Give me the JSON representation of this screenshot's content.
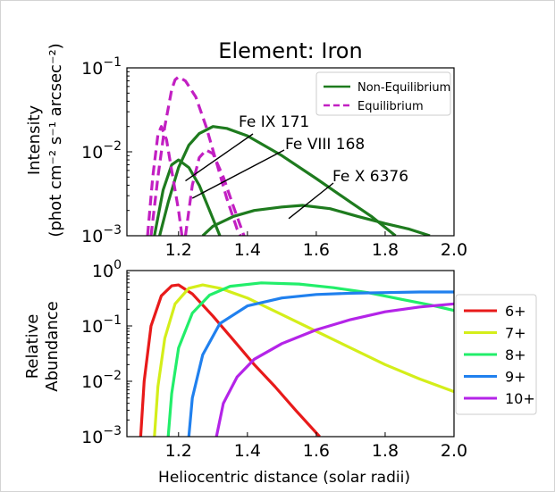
{
  "chart_data": [
    {
      "type": "line",
      "title": "Element: Iron",
      "ylabel_line1": "Intensity",
      "ylabel_line2": "(phot cm⁻² s⁻¹ arcsec⁻²)",
      "xlabel": "",
      "xlim": [
        1.05,
        2.0
      ],
      "ylim": [
        0.001,
        0.1
      ],
      "yscale": "log",
      "xticks": [
        1.2,
        1.4,
        1.6,
        1.8,
        2.0
      ],
      "xtick_labels": [
        "1.2",
        "1.4",
        "1.6",
        "1.8",
        "2.0"
      ],
      "yticks": [
        {
          "base": "10",
          "exp": "−1",
          "value": 0.1
        },
        {
          "base": "10",
          "exp": "−2",
          "value": 0.01
        },
        {
          "base": "10",
          "exp": "−3",
          "value": 0.001
        }
      ],
      "legend": {
        "position": "top-right",
        "entries": [
          {
            "label": "Non-Equilibrium",
            "color": "#1e7b1e",
            "style": "solid"
          },
          {
            "label": "Equilibrium",
            "color": "#c21fc2",
            "style": "dashed"
          }
        ]
      },
      "annotations": [
        {
          "text": "Fe IX 171",
          "target": {
            "x": 1.22,
            "y": 0.0045
          }
        },
        {
          "text": "Fe VIII 168",
          "target": {
            "x": 1.24,
            "y": 0.0028
          }
        },
        {
          "text": "Fe X 6376",
          "target": {
            "x": 1.52,
            "y": 0.0016
          }
        }
      ],
      "series": [
        {
          "line": "Fe IX 171",
          "kind": "Non-Equilibrium",
          "color": "#1e7b1e",
          "dash": false,
          "points": [
            [
              1.145,
              0.001
            ],
            [
              1.17,
              0.0025
            ],
            [
              1.2,
              0.0065
            ],
            [
              1.23,
              0.012
            ],
            [
              1.26,
              0.0165
            ],
            [
              1.3,
              0.02
            ],
            [
              1.34,
              0.019
            ],
            [
              1.4,
              0.0155
            ],
            [
              1.5,
              0.009
            ],
            [
              1.6,
              0.0048
            ],
            [
              1.7,
              0.0025
            ],
            [
              1.76,
              0.0017
            ],
            [
              1.83,
              0.001
            ]
          ]
        },
        {
          "line": "Fe VIII 168",
          "kind": "Non-Equilibrium",
          "color": "#1e7b1e",
          "dash": false,
          "points": [
            [
              1.13,
              0.001
            ],
            [
              1.155,
              0.0035
            ],
            [
              1.18,
              0.007
            ],
            [
              1.2,
              0.008
            ],
            [
              1.23,
              0.0065
            ],
            [
              1.26,
              0.004
            ],
            [
              1.29,
              0.002
            ],
            [
              1.32,
              0.001
            ]
          ]
        },
        {
          "line": "Fe X 6376",
          "kind": "Non-Equilibrium",
          "color": "#1e7b1e",
          "dash": false,
          "points": [
            [
              1.27,
              0.001
            ],
            [
              1.3,
              0.0013
            ],
            [
              1.36,
              0.0017
            ],
            [
              1.42,
              0.002
            ],
            [
              1.5,
              0.0022
            ],
            [
              1.56,
              0.0023
            ],
            [
              1.64,
              0.0021
            ],
            [
              1.72,
              0.0017
            ],
            [
              1.8,
              0.0014
            ],
            [
              1.87,
              0.0012
            ],
            [
              1.93,
              0.001
            ]
          ]
        },
        {
          "line": "Fe IX 171",
          "kind": "Equilibrium",
          "color": "#c21fc2",
          "dash": true,
          "points": [
            [
              1.12,
              0.001
            ],
            [
              1.14,
              0.005
            ],
            [
              1.16,
              0.02
            ],
            [
              1.18,
              0.055
            ],
            [
              1.19,
              0.072
            ],
            [
              1.2,
              0.078
            ],
            [
              1.22,
              0.07
            ],
            [
              1.25,
              0.045
            ],
            [
              1.28,
              0.02
            ],
            [
              1.31,
              0.0075
            ],
            [
              1.34,
              0.0028
            ],
            [
              1.37,
              0.0012
            ],
            [
              1.38,
              0.001
            ]
          ]
        },
        {
          "line": "Fe VIII 168",
          "kind": "Equilibrium",
          "color": "#c21fc2",
          "dash": true,
          "points": [
            [
              1.11,
              0.001
            ],
            [
              1.125,
              0.005
            ],
            [
              1.14,
              0.016
            ],
            [
              1.15,
              0.02
            ],
            [
              1.165,
              0.014
            ],
            [
              1.18,
              0.006
            ],
            [
              1.2,
              0.002
            ],
            [
              1.21,
              0.001
            ]
          ]
        },
        {
          "line": "Fe X 6376",
          "kind": "Equilibrium",
          "color": "#c21fc2",
          "dash": true,
          "points": [
            [
              1.22,
              0.001
            ],
            [
              1.24,
              0.004
            ],
            [
              1.26,
              0.0085
            ],
            [
              1.28,
              0.0105
            ],
            [
              1.3,
              0.0095
            ],
            [
              1.33,
              0.005
            ],
            [
              1.36,
              0.0022
            ],
            [
              1.39,
              0.001
            ]
          ]
        }
      ]
    },
    {
      "type": "line",
      "title": "",
      "ylabel_line1": "Relative",
      "ylabel_line2": "Abundance",
      "xlabel": "Heliocentric distance (solar radii)",
      "xlim": [
        1.05,
        2.0
      ],
      "ylim": [
        0.001,
        1.0
      ],
      "yscale": "log",
      "xticks": [
        1.2,
        1.4,
        1.6,
        1.8,
        2.0
      ],
      "xtick_labels": [
        "1.2",
        "1.4",
        "1.6",
        "1.8",
        "2.0"
      ],
      "yticks": [
        {
          "base": "10",
          "exp": "0",
          "value": 1.0
        },
        {
          "base": "10",
          "exp": "−1",
          "value": 0.1
        },
        {
          "base": "10",
          "exp": "−2",
          "value": 0.01
        },
        {
          "base": "10",
          "exp": "−3",
          "value": 0.001
        }
      ],
      "legend": {
        "position": "right, outside",
        "entries": [
          {
            "label": "6+",
            "color": "#e81a1a"
          },
          {
            "label": "7+",
            "color": "#d4ee1a"
          },
          {
            "label": "8+",
            "color": "#22ee6a"
          },
          {
            "label": "9+",
            "color": "#2080ee"
          },
          {
            "label": "10+",
            "color": "#b424e8"
          }
        ]
      },
      "series": [
        {
          "name": "6+",
          "color": "#e81a1a",
          "points": [
            [
              1.09,
              0.001
            ],
            [
              1.1,
              0.01
            ],
            [
              1.12,
              0.1
            ],
            [
              1.15,
              0.35
            ],
            [
              1.18,
              0.53
            ],
            [
              1.2,
              0.55
            ],
            [
              1.24,
              0.38
            ],
            [
              1.3,
              0.15
            ],
            [
              1.36,
              0.055
            ],
            [
              1.42,
              0.02
            ],
            [
              1.48,
              0.008
            ],
            [
              1.54,
              0.003
            ],
            [
              1.61,
              0.001
            ]
          ]
        },
        {
          "name": "7+",
          "color": "#d4ee1a",
          "points": [
            [
              1.13,
              0.001
            ],
            [
              1.14,
              0.008
            ],
            [
              1.16,
              0.06
            ],
            [
              1.19,
              0.25
            ],
            [
              1.23,
              0.48
            ],
            [
              1.27,
              0.55
            ],
            [
              1.32,
              0.48
            ],
            [
              1.4,
              0.32
            ],
            [
              1.5,
              0.16
            ],
            [
              1.6,
              0.08
            ],
            [
              1.7,
              0.04
            ],
            [
              1.8,
              0.02
            ],
            [
              1.9,
              0.011
            ],
            [
              2.0,
              0.0065
            ]
          ]
        },
        {
          "name": "8+",
          "color": "#22ee6a",
          "points": [
            [
              1.17,
              0.001
            ],
            [
              1.18,
              0.006
            ],
            [
              1.2,
              0.04
            ],
            [
              1.24,
              0.17
            ],
            [
              1.29,
              0.36
            ],
            [
              1.35,
              0.52
            ],
            [
              1.44,
              0.6
            ],
            [
              1.55,
              0.57
            ],
            [
              1.65,
              0.49
            ],
            [
              1.75,
              0.4
            ],
            [
              1.85,
              0.3
            ],
            [
              1.93,
              0.24
            ],
            [
              2.0,
              0.19
            ]
          ]
        },
        {
          "name": "9+",
          "color": "#2080ee",
          "points": [
            [
              1.23,
              0.001
            ],
            [
              1.24,
              0.005
            ],
            [
              1.27,
              0.03
            ],
            [
              1.32,
              0.11
            ],
            [
              1.4,
              0.23
            ],
            [
              1.5,
              0.32
            ],
            [
              1.6,
              0.37
            ],
            [
              1.7,
              0.39
            ],
            [
              1.8,
              0.4
            ],
            [
              1.9,
              0.41
            ],
            [
              2.0,
              0.41
            ]
          ]
        },
        {
          "name": "10+",
          "color": "#b424e8",
          "points": [
            [
              1.31,
              0.001
            ],
            [
              1.33,
              0.004
            ],
            [
              1.37,
              0.012
            ],
            [
              1.42,
              0.025
            ],
            [
              1.5,
              0.048
            ],
            [
              1.6,
              0.085
            ],
            [
              1.7,
              0.13
            ],
            [
              1.8,
              0.18
            ],
            [
              1.9,
              0.22
            ],
            [
              2.0,
              0.25
            ]
          ]
        }
      ]
    }
  ]
}
